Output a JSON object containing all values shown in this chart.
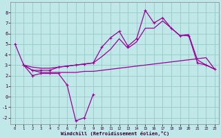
{
  "xlabel": "Windchill (Refroidissement éolien,°C)",
  "background_color": "#c0e8e8",
  "grid_color": "#98c8c8",
  "line_color": "#990099",
  "xlim": [
    -0.5,
    23.5
  ],
  "ylim": [
    -2.6,
    9.0
  ],
  "xticks": [
    0,
    1,
    2,
    3,
    4,
    5,
    6,
    7,
    8,
    9,
    10,
    11,
    12,
    13,
    14,
    15,
    16,
    17,
    18,
    19,
    20,
    21,
    22,
    23
  ],
  "yticks": [
    -2,
    -1,
    0,
    1,
    2,
    3,
    4,
    5,
    6,
    7,
    8
  ],
  "line1_x": [
    0,
    1,
    2,
    3,
    4,
    5,
    6,
    7,
    8,
    9
  ],
  "line1_y": [
    5.0,
    3.0,
    2.0,
    2.2,
    2.2,
    2.2,
    1.1,
    -2.3,
    -2.0,
    0.2
  ],
  "line2_x": [
    1,
    2,
    3,
    4,
    5,
    6,
    7,
    8,
    9,
    10,
    11,
    12,
    13,
    14,
    15,
    16,
    17,
    18,
    19,
    20,
    21,
    22,
    23
  ],
  "line2_y": [
    3.0,
    2.5,
    2.3,
    2.3,
    2.3,
    2.3,
    2.3,
    2.4,
    2.4,
    2.5,
    2.6,
    2.7,
    2.8,
    2.9,
    3.0,
    3.1,
    3.2,
    3.3,
    3.4,
    3.5,
    3.6,
    3.7,
    2.6
  ],
  "line3_x": [
    1,
    2,
    3,
    4,
    5,
    6,
    7,
    8,
    9,
    10,
    11,
    12,
    13,
    14,
    15,
    16,
    17,
    18,
    19,
    20,
    21,
    22,
    23
  ],
  "line3_y": [
    3.0,
    2.5,
    2.5,
    2.5,
    2.8,
    2.9,
    3.0,
    3.1,
    3.2,
    4.7,
    5.6,
    6.2,
    4.8,
    5.5,
    8.2,
    7.0,
    7.5,
    6.5,
    5.8,
    5.8,
    3.2,
    3.0,
    2.6
  ],
  "line4_x": [
    1,
    2,
    3,
    4,
    5,
    6,
    7,
    8,
    9,
    10,
    11,
    12,
    13,
    14,
    15,
    16,
    17,
    18,
    19,
    20,
    21,
    22,
    23
  ],
  "line4_y": [
    3.0,
    2.8,
    2.7,
    2.7,
    2.8,
    2.9,
    3.0,
    3.1,
    3.2,
    3.8,
    4.5,
    5.5,
    4.6,
    5.2,
    6.5,
    6.5,
    7.2,
    6.5,
    5.8,
    5.9,
    3.5,
    3.0,
    2.6
  ]
}
